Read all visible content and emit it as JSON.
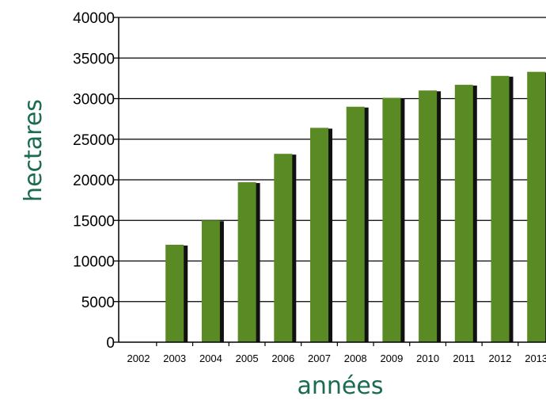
{
  "chart_data": {
    "type": "bar",
    "title": "",
    "xlabel": "années",
    "ylabel": "hectares",
    "ylim": [
      0,
      40000
    ],
    "yticks": [
      0,
      5000,
      10000,
      15000,
      20000,
      25000,
      30000,
      35000,
      40000
    ],
    "grid": true,
    "categories": [
      "2002",
      "2003",
      "2004",
      "2005",
      "2006",
      "2007",
      "2008",
      "2009",
      "2010",
      "2011",
      "2012",
      "2013"
    ],
    "values": [
      0,
      12000,
      15000,
      19700,
      23200,
      26400,
      29000,
      30100,
      31000,
      31700,
      32800,
      33300
    ],
    "colors": {
      "bar": "#5a8a23",
      "bar_shadow": "#111111",
      "axis_title": "#1a6b50",
      "grid": "#000000"
    }
  }
}
